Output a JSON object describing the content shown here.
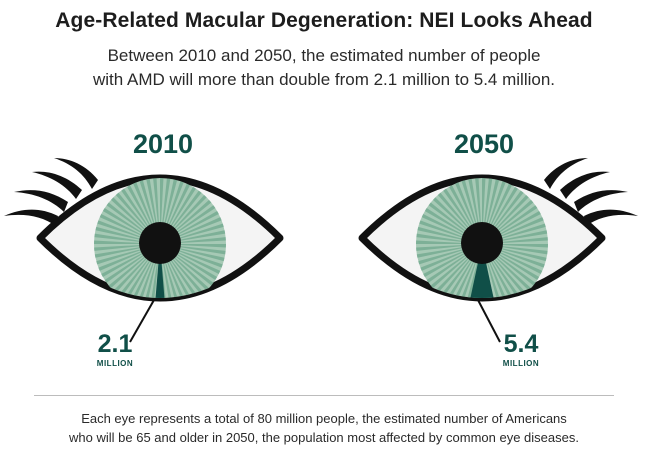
{
  "title": "Age-Related Macular Degeneration: NEI Looks Ahead",
  "subtitle": {
    "line1": "Between 2010 and 2050, the estimated number of people",
    "line2": "with AMD will more than double from 2.1 million to 5.4 million."
  },
  "eyes": [
    {
      "year": "2010",
      "value": "2.1",
      "unit": "MILLION",
      "amd_millions": 2.1
    },
    {
      "year": "2050",
      "value": "5.4",
      "unit": "MILLION",
      "amd_millions": 5.4
    }
  ],
  "total_millions": 80,
  "colors": {
    "accent": "#104f48",
    "iris_light": "#a6c9b5",
    "iris_dark": "#5b9a7e",
    "outline": "#111111",
    "sclera": "#f4f4f4"
  },
  "footnote": {
    "line1": "Each eye represents a total of 80 million people, the estimated number of Americans",
    "line2": "who will be 65 and older in 2050, the population most affected by common eye diseases."
  }
}
